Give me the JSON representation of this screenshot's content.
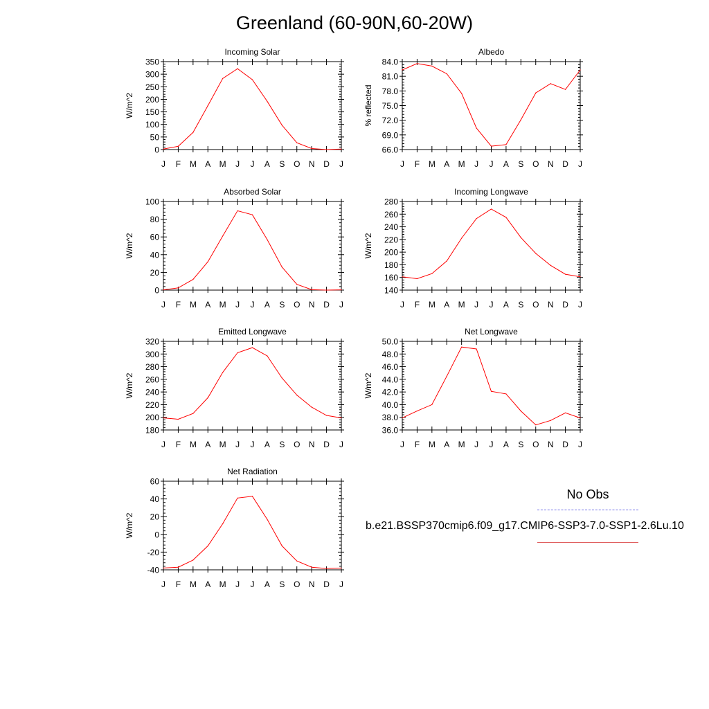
{
  "title": "Greenland (60-90N,60-20W)",
  "legend": {
    "obs_label": "No Obs",
    "obs_color": "#6a6ae6",
    "case_label": "b.e21.BSSP370cmip6.f09_g17.CMIP6-SSP3-7.0-SSP1-2.6Lu.10",
    "case_color": "#ff0000"
  },
  "chart_data": [
    {
      "type": "line",
      "title": "Incoming Solar",
      "ylabel": "W/m^2",
      "categories": [
        "J",
        "F",
        "M",
        "A",
        "M",
        "J",
        "J",
        "A",
        "S",
        "O",
        "N",
        "D",
        "J"
      ],
      "ylim": [
        0,
        350
      ],
      "yticks": [
        "0",
        "50",
        "100",
        "150",
        "200",
        "250",
        "300",
        "350"
      ],
      "series": [
        {
          "color": "#ff0000",
          "values": [
            2,
            13,
            68,
            175,
            283,
            322,
            278,
            192,
            97,
            27,
            4,
            0,
            2
          ]
        }
      ]
    },
    {
      "type": "line",
      "title": "Albedo",
      "ylabel": "% reflected",
      "categories": [
        "J",
        "F",
        "M",
        "A",
        "M",
        "J",
        "J",
        "A",
        "S",
        "O",
        "N",
        "D",
        "J"
      ],
      "ylim": [
        66,
        84
      ],
      "yticks": [
        "66.0",
        "69.0",
        "72.0",
        "75.0",
        "78.0",
        "81.0",
        "84.0"
      ],
      "series": [
        {
          "color": "#ff0000",
          "values": [
            82.3,
            83.6,
            83.1,
            81.5,
            77.5,
            70.4,
            66.7,
            67.0,
            72.1,
            77.6,
            79.5,
            78.3,
            82.3
          ]
        }
      ]
    },
    {
      "type": "line",
      "title": "Absorbed Solar",
      "ylabel": "W/m^2",
      "categories": [
        "J",
        "F",
        "M",
        "A",
        "M",
        "J",
        "J",
        "A",
        "S",
        "O",
        "N",
        "D",
        "J"
      ],
      "ylim": [
        0,
        100
      ],
      "yticks": [
        "0",
        "20",
        "40",
        "60",
        "80",
        "100"
      ],
      "series": [
        {
          "color": "#ff0000",
          "values": [
            0.3,
            2.5,
            12,
            32,
            61,
            89.5,
            85,
            57,
            26,
            6.5,
            0.5,
            0,
            0.3
          ]
        }
      ]
    },
    {
      "type": "line",
      "title": "Incoming Longwave",
      "ylabel": "W/m^2",
      "categories": [
        "J",
        "F",
        "M",
        "A",
        "M",
        "J",
        "J",
        "A",
        "S",
        "O",
        "N",
        "D",
        "J"
      ],
      "ylim": [
        140,
        280
      ],
      "yticks": [
        "140",
        "160",
        "180",
        "200",
        "220",
        "240",
        "260",
        "280"
      ],
      "series": [
        {
          "color": "#ff0000",
          "values": [
            161,
            158,
            166,
            186,
            222,
            253,
            268,
            255,
            223,
            198,
            179,
            165,
            161
          ]
        }
      ]
    },
    {
      "type": "line",
      "title": "Emitted Longwave",
      "ylabel": "W/m^2",
      "categories": [
        "J",
        "F",
        "M",
        "A",
        "M",
        "J",
        "J",
        "A",
        "S",
        "O",
        "N",
        "D",
        "J"
      ],
      "ylim": [
        180,
        320
      ],
      "yticks": [
        "180",
        "200",
        "220",
        "240",
        "260",
        "280",
        "300",
        "320"
      ],
      "series": [
        {
          "color": "#ff0000",
          "values": [
            199,
            197,
            206,
            231,
            271,
            302,
            310,
            297,
            262,
            235,
            216,
            203,
            199
          ]
        }
      ]
    },
    {
      "type": "line",
      "title": "Net Longwave",
      "ylabel": "W/m^2",
      "categories": [
        "J",
        "F",
        "M",
        "A",
        "M",
        "J",
        "J",
        "A",
        "S",
        "O",
        "N",
        "D",
        "J"
      ],
      "ylim": [
        36,
        50
      ],
      "yticks": [
        "36.0",
        "38.0",
        "40.0",
        "42.0",
        "44.0",
        "46.0",
        "48.0",
        "50.0"
      ],
      "series": [
        {
          "color": "#ff0000",
          "values": [
            37.9,
            39.0,
            40.0,
            44.5,
            49.1,
            48.8,
            42.1,
            41.7,
            39.0,
            36.8,
            37.5,
            38.7,
            37.9
          ]
        }
      ]
    },
    {
      "type": "line",
      "title": "Net Radiation",
      "ylabel": "W/m^2",
      "categories": [
        "J",
        "F",
        "M",
        "A",
        "M",
        "J",
        "J",
        "A",
        "S",
        "O",
        "N",
        "D",
        "J"
      ],
      "ylim": [
        -40,
        60
      ],
      "yticks": [
        "-40",
        "-20",
        "0",
        "20",
        "40",
        "60"
      ],
      "series": [
        {
          "color": "#ff0000",
          "values": [
            -38,
            -37,
            -29,
            -13,
            12,
            41,
            43,
            17,
            -13,
            -30,
            -37,
            -38.5,
            -38
          ]
        }
      ]
    }
  ]
}
